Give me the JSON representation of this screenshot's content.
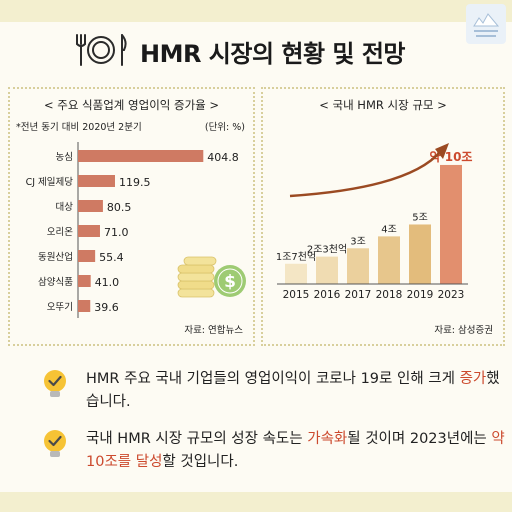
{
  "header": {
    "title": "HMR 시장의 현황 및 전망",
    "icon": "plate-fork-knife-icon"
  },
  "left_panel": {
    "title": "< 주요 식품업계 영업이익 증가율 >",
    "note": "*전년 동기 대비 2020년 2분기",
    "unit": "(단위: %)",
    "source": "자료: 연합뉴스"
  },
  "right_panel": {
    "title": "< 국내 HMR 시장 규모 >",
    "source": "자료: 삼성증권"
  },
  "chart_data": [
    {
      "type": "bar",
      "orientation": "horizontal",
      "title": "< 주요 식품업계 영업이익 증가율 >",
      "categories": [
        "농심",
        "CJ 제일제당",
        "대상",
        "오리온",
        "동원산업",
        "삼양식품",
        "오뚜기"
      ],
      "values": [
        404.8,
        119.5,
        80.5,
        71.0,
        55.4,
        41.0,
        39.6
      ],
      "labels": [
        "404.8",
        "119.5",
        "80.5",
        "71.0",
        "55.4",
        "41.0",
        "39.6"
      ],
      "xlim": [
        0,
        420
      ],
      "color": "#cf7a63"
    },
    {
      "type": "bar",
      "title": "< 국내 HMR 시장 규모 >",
      "categories": [
        "2015",
        "2016",
        "2017",
        "2018",
        "2019",
        "2023"
      ],
      "values": [
        1.7,
        2.3,
        3,
        4,
        5,
        10
      ],
      "labels": [
        "1조7천억",
        "2조3천억",
        "3조",
        "4조",
        "5조",
        "약 10조"
      ],
      "ylim": [
        0,
        10.5
      ],
      "colors": [
        "#f4e6c5",
        "#f0dcb2",
        "#ebd09d",
        "#e7c68c",
        "#e3bc7c",
        "#e28f6e"
      ],
      "highlight_label_color": "#cc4a2e",
      "trend_arrow_color": "#9b4a22"
    }
  ],
  "bullets": [
    {
      "before": "HMR 주요 국내 기업들의 영업이익이 코로나 19로 인해 크게 ",
      "highlight": "증가",
      "after": "했습니다.",
      "icon": "lightbulb-check-icon"
    },
    {
      "before": "국내 HMR 시장 규모의 성장 속도는 ",
      "highlight": "가속화",
      "middle": "될 것이며 2023년에는 ",
      "highlight2": "약 10조를 달성",
      "after": "할 것입니다.",
      "icon": "lightbulb-check-icon"
    }
  ],
  "colors": {
    "accent": "#cc4a2e",
    "bar": "#cf7a63",
    "band": "#f3efcf",
    "panel_border": "#d8cf9c"
  }
}
